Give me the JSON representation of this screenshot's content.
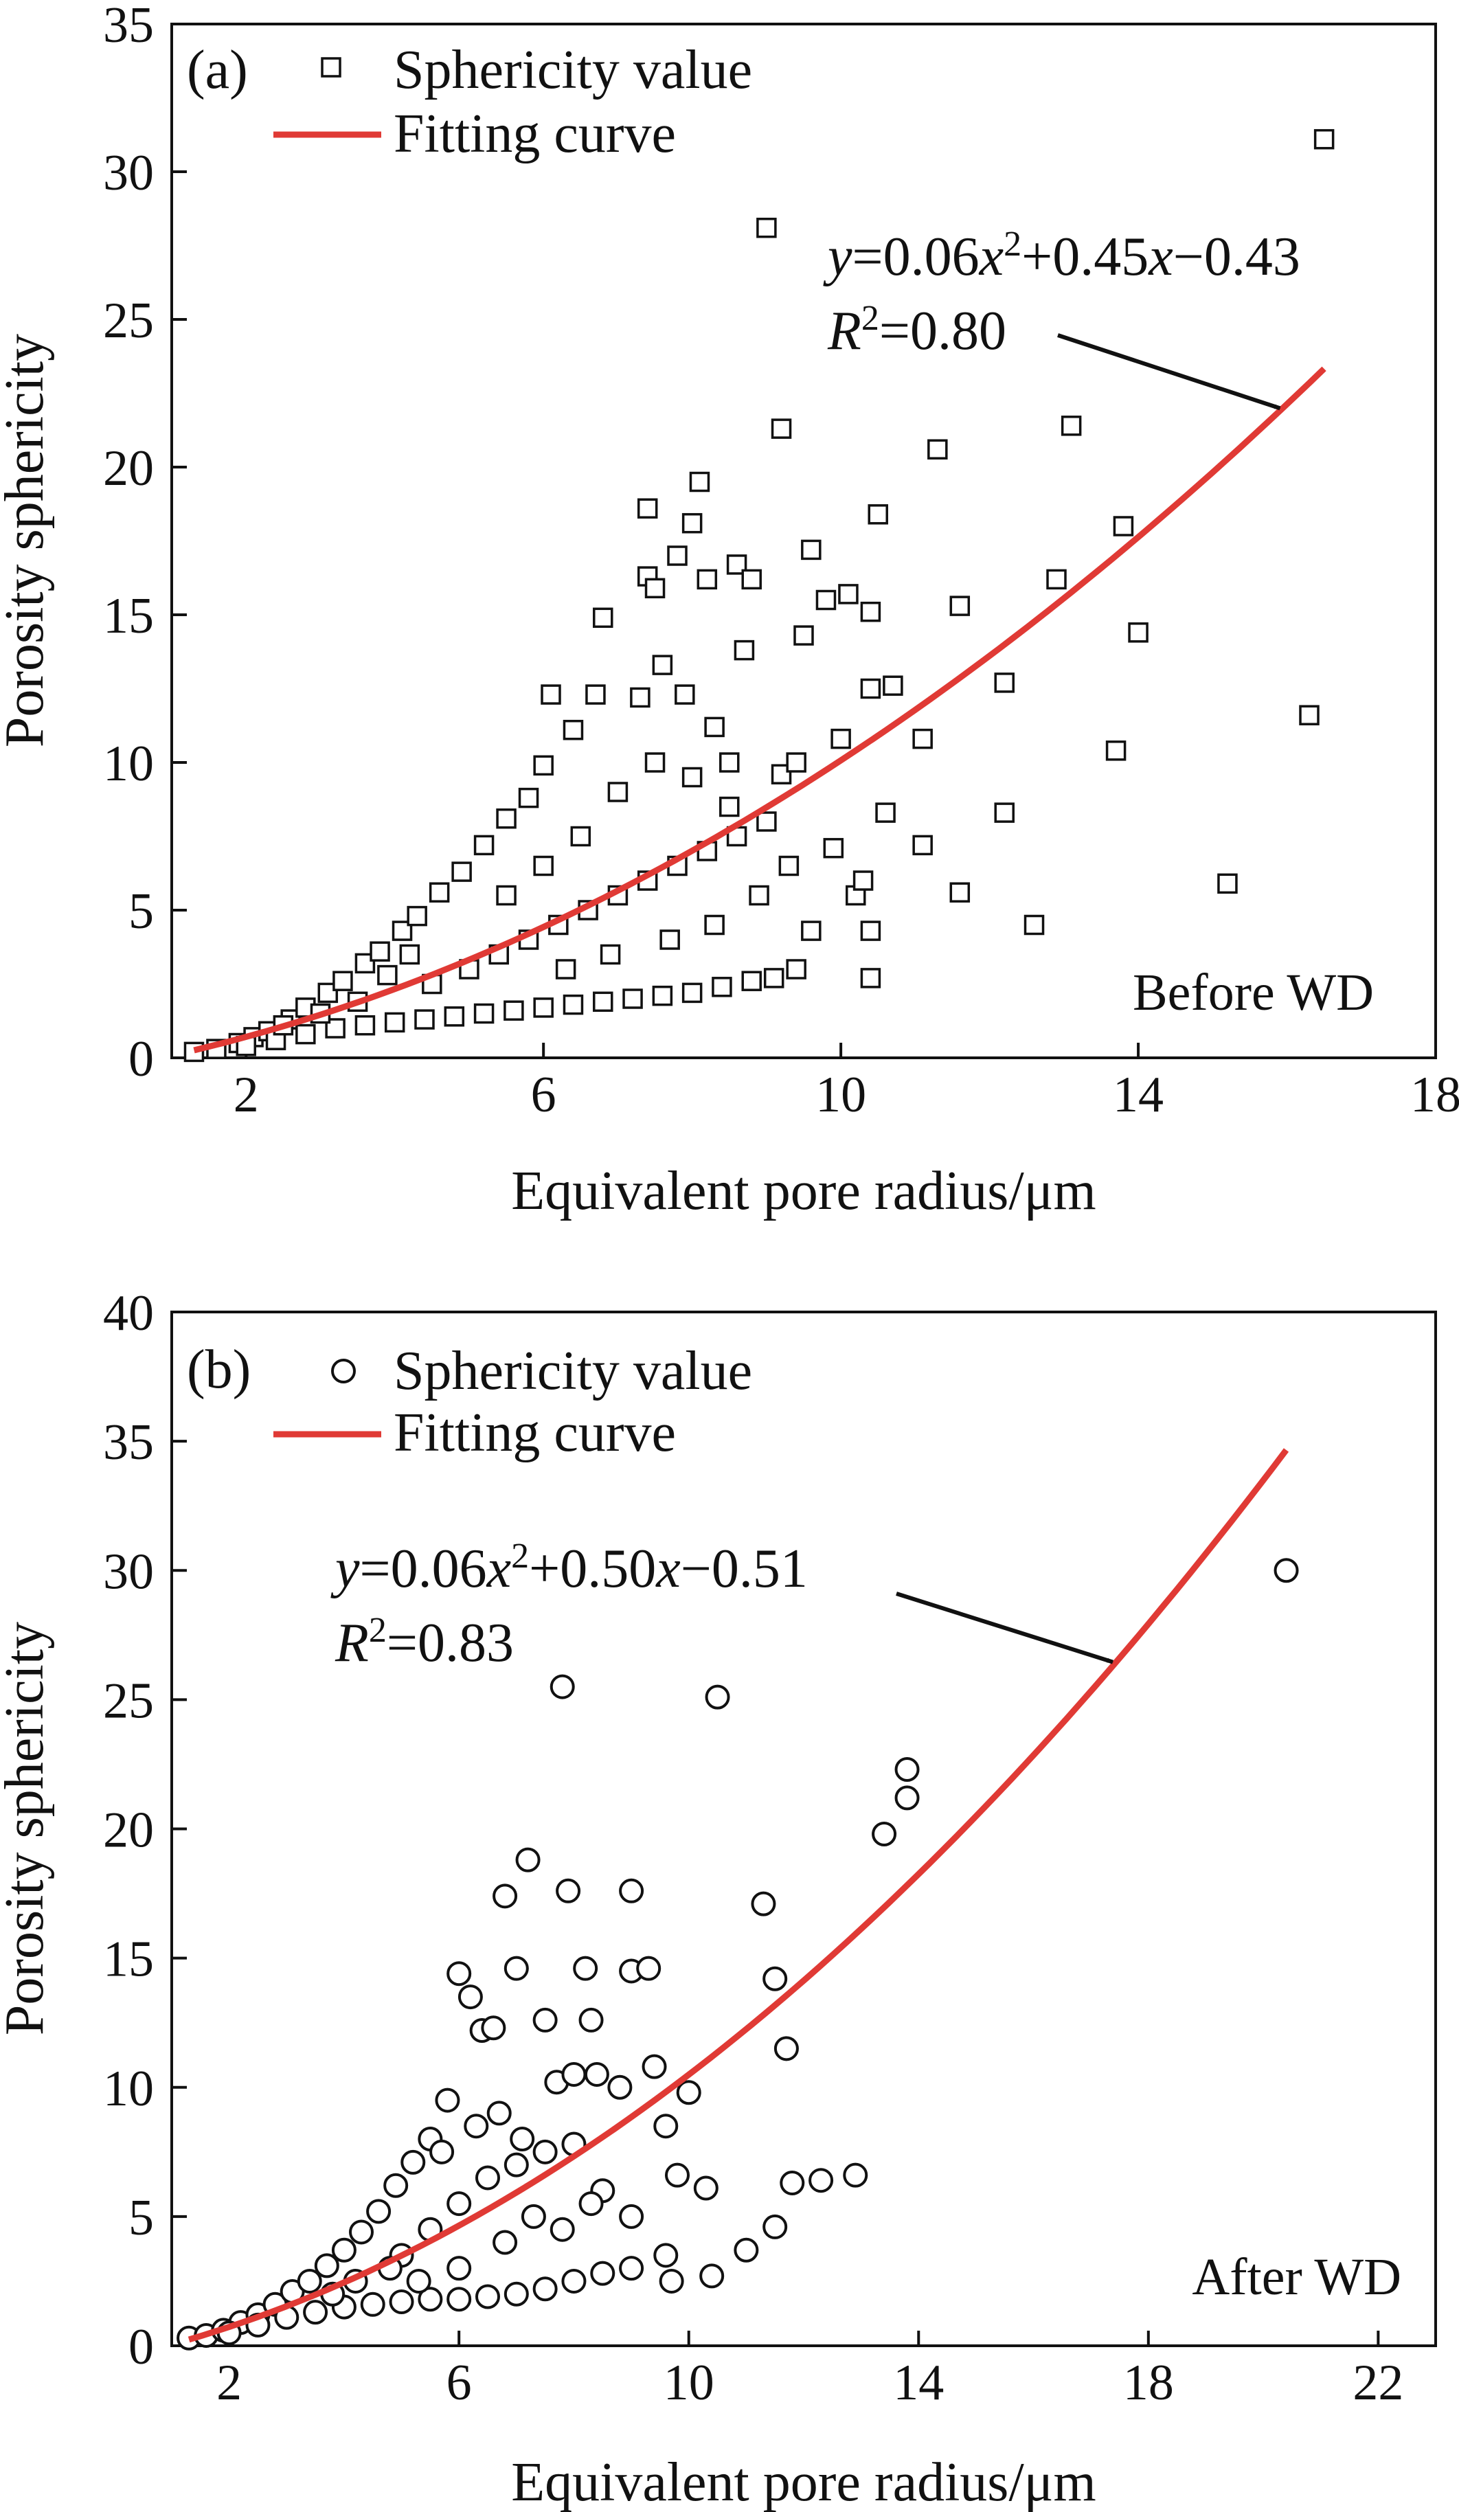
{
  "chart_data": [
    {
      "type": "scatter",
      "panel_label": "(a)",
      "condition": "Before WD",
      "xlabel": "Equivalent pore radius/μm",
      "ylabel": "Porosity sphericity",
      "xlim": [
        1,
        18
      ],
      "ylim": [
        0,
        35
      ],
      "xticks": [
        2,
        6,
        10,
        14,
        18
      ],
      "yticks": [
        0,
        5,
        10,
        15,
        20,
        25,
        30,
        35
      ],
      "grid": false,
      "legend_position": "top-left",
      "marker": "square",
      "series": [
        {
          "name": "Sphericity value",
          "kind": "scatter",
          "points": [
            [
              1.3,
              0.2
            ],
            [
              1.6,
              0.3
            ],
            [
              1.9,
              0.5
            ],
            [
              2.1,
              0.7
            ],
            [
              2.3,
              0.9
            ],
            [
              2.6,
              1.3
            ],
            [
              2.8,
              1.7
            ],
            [
              3.1,
              2.2
            ],
            [
              3.3,
              2.6
            ],
            [
              3.6,
              3.2
            ],
            [
              3.8,
              3.6
            ],
            [
              4.1,
              4.3
            ],
            [
              4.3,
              4.8
            ],
            [
              4.6,
              5.6
            ],
            [
              4.9,
              6.3
            ],
            [
              5.2,
              7.2
            ],
            [
              5.5,
              8.1
            ],
            [
              5.8,
              8.8
            ],
            [
              6.0,
              9.9
            ],
            [
              6.1,
              12.3
            ],
            [
              6.4,
              11.1
            ],
            [
              6.7,
              12.3
            ],
            [
              6.8,
              14.9
            ],
            [
              7.3,
              12.2
            ],
            [
              7.4,
              18.6
            ],
            [
              7.4,
              16.3
            ],
            [
              7.5,
              15.9
            ],
            [
              7.6,
              13.3
            ],
            [
              7.8,
              17.0
            ],
            [
              7.9,
              12.3
            ],
            [
              8.0,
              18.1
            ],
            [
              8.1,
              19.5
            ],
            [
              8.2,
              16.2
            ],
            [
              8.3,
              11.2
            ],
            [
              8.5,
              10.0
            ],
            [
              8.6,
              16.7
            ],
            [
              8.7,
              13.8
            ],
            [
              8.8,
              16.2
            ],
            [
              9.0,
              28.1
            ],
            [
              9.2,
              21.3
            ],
            [
              9.2,
              9.6
            ],
            [
              9.4,
              10.0
            ],
            [
              9.5,
              14.3
            ],
            [
              9.6,
              17.2
            ],
            [
              9.8,
              15.5
            ],
            [
              10.1,
              15.7
            ],
            [
              10.0,
              10.8
            ],
            [
              10.2,
              5.5
            ],
            [
              10.3,
              6.0
            ],
            [
              10.4,
              12.5
            ],
            [
              10.4,
              15.1
            ],
            [
              10.5,
              18.4
            ],
            [
              10.4,
              4.3
            ],
            [
              10.4,
              2.7
            ],
            [
              10.6,
              8.3
            ],
            [
              10.7,
              12.6
            ],
            [
              11.1,
              10.8
            ],
            [
              11.1,
              7.2
            ],
            [
              11.3,
              20.6
            ],
            [
              11.6,
              15.3
            ],
            [
              11.6,
              5.6
            ],
            [
              12.2,
              8.3
            ],
            [
              12.2,
              12.7
            ],
            [
              12.6,
              4.5
            ],
            [
              12.9,
              16.2
            ],
            [
              13.1,
              21.4
            ],
            [
              13.7,
              10.4
            ],
            [
              13.8,
              18.0
            ],
            [
              14.0,
              14.4
            ],
            [
              15.2,
              5.9
            ],
            [
              16.3,
              11.6
            ],
            [
              16.5,
              31.1
            ],
            [
              2.0,
              0.4
            ],
            [
              2.4,
              0.6
            ],
            [
              2.8,
              0.8
            ],
            [
              3.2,
              1.0
            ],
            [
              3.6,
              1.1
            ],
            [
              4.0,
              1.2
            ],
            [
              4.4,
              1.3
            ],
            [
              4.8,
              1.4
            ],
            [
              5.2,
              1.5
            ],
            [
              5.6,
              1.6
            ],
            [
              6.0,
              1.7
            ],
            [
              6.4,
              1.8
            ],
            [
              6.8,
              1.9
            ],
            [
              7.2,
              2.0
            ],
            [
              7.6,
              2.1
            ],
            [
              8.0,
              2.2
            ],
            [
              8.4,
              2.4
            ],
            [
              8.8,
              2.6
            ],
            [
              9.1,
              2.7
            ],
            [
              9.4,
              3.0
            ],
            [
              9.6,
              4.3
            ],
            [
              9.9,
              7.1
            ],
            [
              5.0,
              3.0
            ],
            [
              5.4,
              3.5
            ],
            [
              5.8,
              4.0
            ],
            [
              6.2,
              4.5
            ],
            [
              6.6,
              5.0
            ],
            [
              7.0,
              5.5
            ],
            [
              7.4,
              6.0
            ],
            [
              7.8,
              6.5
            ],
            [
              8.2,
              7.0
            ],
            [
              8.6,
              7.5
            ],
            [
              9.0,
              8.0
            ],
            [
              6.5,
              7.5
            ],
            [
              7.0,
              9.0
            ],
            [
              7.5,
              10.0
            ],
            [
              8.0,
              9.5
            ],
            [
              8.5,
              8.5
            ],
            [
              4.5,
              2.5
            ],
            [
              4.2,
              3.5
            ],
            [
              3.9,
              2.8
            ],
            [
              3.5,
              1.9
            ],
            [
              3.0,
              1.5
            ],
            [
              2.5,
              1.1
            ],
            [
              5.5,
              5.5
            ],
            [
              6.0,
              6.5
            ],
            [
              6.3,
              3.0
            ],
            [
              6.9,
              3.5
            ],
            [
              7.7,
              4.0
            ],
            [
              8.3,
              4.5
            ],
            [
              8.9,
              5.5
            ],
            [
              9.3,
              6.5
            ]
          ]
        },
        {
          "name": "Fitting curve",
          "kind": "line",
          "color": "#e03a35",
          "equation": {
            "a": 0.06,
            "b": 0.45,
            "c": -0.43
          },
          "x_range": [
            1.3,
            16.5
          ]
        }
      ],
      "annotation": {
        "equation": {
          "y": "y",
          "eq1": "=0.06",
          "x1": "x",
          "sup": "2",
          "eq2": "+0.45",
          "x2": "x",
          "eq3": "−0.43"
        },
        "r2": {
          "r": "R",
          "sup": "2",
          "val": "=0.80"
        },
        "arrow_to_x": 16.0
      }
    },
    {
      "type": "scatter",
      "panel_label": "(b)",
      "condition": "After WD",
      "xlabel": "Equivalent pore radius/μm",
      "ylabel": "Porosity sphericity",
      "xlim": [
        1,
        23
      ],
      "ylim": [
        0,
        40
      ],
      "xticks": [
        2,
        6,
        10,
        14,
        18,
        22
      ],
      "yticks": [
        0,
        5,
        10,
        15,
        20,
        25,
        30,
        35,
        40
      ],
      "grid": false,
      "legend_position": "top-left",
      "marker": "circle",
      "series": [
        {
          "name": "Sphericity value",
          "kind": "scatter",
          "points": [
            [
              1.3,
              0.3
            ],
            [
              1.6,
              0.4
            ],
            [
              1.9,
              0.6
            ],
            [
              2.2,
              0.9
            ],
            [
              2.5,
              1.2
            ],
            [
              2.8,
              1.6
            ],
            [
              3.1,
              2.1
            ],
            [
              3.4,
              2.5
            ],
            [
              3.7,
              3.1
            ],
            [
              4.0,
              3.7
            ],
            [
              4.3,
              4.4
            ],
            [
              4.6,
              5.2
            ],
            [
              4.9,
              6.2
            ],
            [
              5.2,
              7.1
            ],
            [
              5.5,
              8.0
            ],
            [
              5.8,
              9.5
            ],
            [
              6.0,
              14.4
            ],
            [
              6.2,
              13.5
            ],
            [
              6.4,
              12.2
            ],
            [
              6.6,
              12.3
            ],
            [
              6.8,
              17.4
            ],
            [
              7.0,
              14.6
            ],
            [
              7.2,
              18.8
            ],
            [
              7.5,
              12.6
            ],
            [
              7.7,
              10.2
            ],
            [
              7.8,
              25.5
            ],
            [
              7.9,
              17.6
            ],
            [
              8.0,
              10.5
            ],
            [
              8.2,
              14.6
            ],
            [
              8.3,
              12.6
            ],
            [
              8.4,
              10.5
            ],
            [
              8.8,
              10.0
            ],
            [
              9.0,
              17.6
            ],
            [
              9.0,
              14.5
            ],
            [
              9.3,
              14.6
            ],
            [
              9.4,
              10.8
            ],
            [
              9.6,
              8.5
            ],
            [
              9.6,
              3.5
            ],
            [
              9.7,
              2.5
            ],
            [
              9.8,
              6.6
            ],
            [
              10.0,
              9.8
            ],
            [
              10.3,
              6.1
            ],
            [
              10.4,
              2.7
            ],
            [
              10.5,
              25.1
            ],
            [
              11.0,
              3.7
            ],
            [
              11.3,
              17.1
            ],
            [
              11.5,
              14.2
            ],
            [
              11.5,
              4.6
            ],
            [
              11.7,
              11.5
            ],
            [
              11.8,
              6.3
            ],
            [
              12.3,
              6.4
            ],
            [
              12.9,
              6.6
            ],
            [
              13.4,
              19.8
            ],
            [
              13.8,
              22.3
            ],
            [
              13.8,
              21.2
            ],
            [
              20.4,
              30.0
            ],
            [
              2.0,
              0.5
            ],
            [
              2.5,
              0.8
            ],
            [
              3.0,
              1.1
            ],
            [
              3.5,
              1.3
            ],
            [
              4.0,
              1.5
            ],
            [
              4.5,
              1.6
            ],
            [
              5.0,
              1.7
            ],
            [
              5.5,
              1.8
            ],
            [
              6.0,
              1.8
            ],
            [
              6.5,
              1.9
            ],
            [
              7.0,
              2.0
            ],
            [
              7.5,
              2.2
            ],
            [
              8.0,
              2.5
            ],
            [
              8.5,
              2.8
            ],
            [
              9.0,
              3.0
            ],
            [
              5.0,
              3.5
            ],
            [
              5.5,
              4.5
            ],
            [
              6.0,
              5.5
            ],
            [
              6.5,
              6.5
            ],
            [
              7.0,
              7.0
            ],
            [
              7.5,
              7.5
            ],
            [
              8.0,
              7.8
            ],
            [
              8.5,
              6.0
            ],
            [
              9.0,
              5.0
            ],
            [
              6.0,
              3.0
            ],
            [
              6.8,
              4.0
            ],
            [
              7.3,
              5.0
            ],
            [
              7.8,
              4.5
            ],
            [
              8.3,
              5.5
            ],
            [
              4.2,
              2.5
            ],
            [
              4.8,
              3.0
            ],
            [
              3.8,
              2.0
            ],
            [
              5.3,
              2.5
            ],
            [
              6.3,
              8.5
            ],
            [
              6.7,
              9.0
            ],
            [
              7.1,
              8.0
            ],
            [
              5.7,
              7.5
            ]
          ]
        },
        {
          "name": "Fitting curve",
          "kind": "line",
          "color": "#e03a35",
          "equation": {
            "a": 0.06,
            "b": 0.5,
            "c": -0.51
          },
          "x_range": [
            1.3,
            20.4
          ]
        }
      ],
      "annotation": {
        "equation": {
          "y": "y",
          "eq1": "=0.06",
          "x1": "x",
          "sup": "2",
          "eq2": "+0.50",
          "x2": "x",
          "eq3": "−0.51"
        },
        "r2": {
          "r": "R",
          "sup": "2",
          "val": "=0.83"
        },
        "arrow_to_x": 17.5
      }
    }
  ]
}
